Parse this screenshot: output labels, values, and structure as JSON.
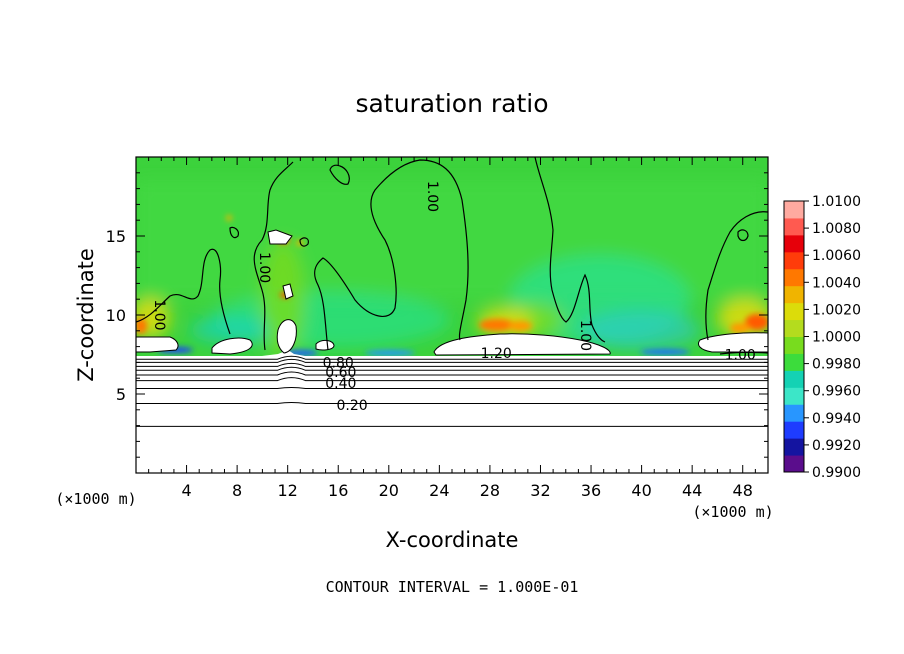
{
  "chart_data": {
    "type": "heatmap",
    "title": "saturation ratio",
    "xlabel": "X-coordinate",
    "ylabel": "Z-coordinate",
    "x_unit": "(×1000 m)",
    "y_unit": "(×1000 m)",
    "footer": "CONTOUR INTERVAL = 1.000E-01",
    "xlim": [
      0,
      50
    ],
    "ylim": [
      0,
      20
    ],
    "xticks": [
      "4",
      "8",
      "12",
      "16",
      "20",
      "24",
      "28",
      "32",
      "36",
      "40",
      "44",
      "48"
    ],
    "yticks": [
      "5",
      "10",
      "15"
    ],
    "colorbar": {
      "labels": [
        "1.0100",
        "1.0080",
        "1.0060",
        "1.0040",
        "1.0020",
        "1.0000",
        "0.9980",
        "0.9960",
        "0.9940",
        "0.9920",
        "0.9900"
      ],
      "min": 0.99,
      "max": 1.01,
      "colors": [
        "#5a0d8c",
        "#1414a0",
        "#1e3cff",
        "#2896ff",
        "#3ce6c8",
        "#14d2b4",
        "#3cdc3c",
        "#78dc1e",
        "#b4dc1e",
        "#dcdc0a",
        "#f0b400",
        "#ff7800",
        "#ff3c0a",
        "#e6000a",
        "#ff5a50",
        "#ffaaa0"
      ]
    },
    "contour_labels": [
      {
        "text": "1.00",
        "x": 23.5,
        "z": 17.5,
        "angle": 90
      },
      {
        "text": "1.00",
        "x": 1.9,
        "z": 10.0,
        "angle": 90
      },
      {
        "text": "1.00",
        "x": 10.2,
        "z": 13.0,
        "angle": 90
      },
      {
        "text": "1.00",
        "x": 35.6,
        "z": 8.7,
        "angle": 90
      },
      {
        "text": "1.00",
        "x": 47.8,
        "z": 7.5,
        "angle": 0
      },
      {
        "text": "1.20",
        "x": 28.5,
        "z": 7.6,
        "angle": 0
      },
      {
        "text": "0.80",
        "x": 16.0,
        "z": 7.0,
        "angle": 0
      },
      {
        "text": "0.60",
        "x": 16.2,
        "z": 6.4,
        "angle": 0
      },
      {
        "text": "0.40",
        "x": 16.2,
        "z": 5.7,
        "angle": 0
      },
      {
        "text": "0.20",
        "x": 17.1,
        "z": 4.3,
        "angle": 0
      }
    ],
    "lower_contours_z": [
      7.2,
      7.0,
      6.75,
      6.5,
      6.2,
      5.85,
      5.35,
      4.4,
      2.95
    ]
  }
}
